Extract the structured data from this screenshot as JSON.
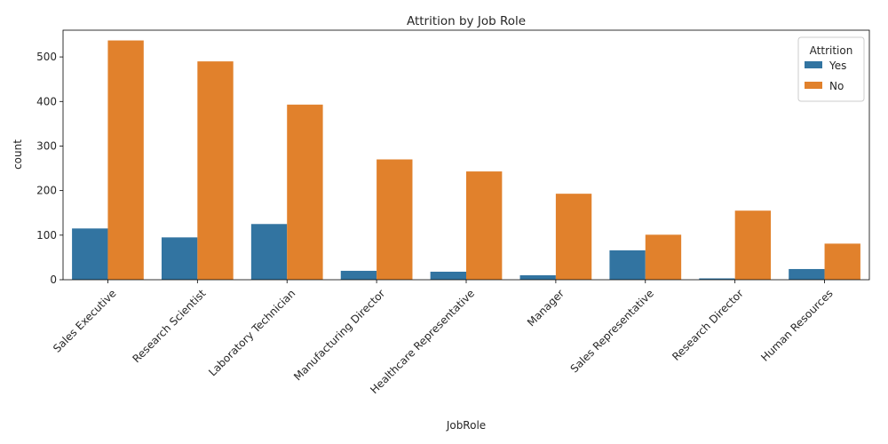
{
  "chart_data": {
    "type": "bar",
    "title": "Attrition by Job Role",
    "xlabel": "JobRole",
    "ylabel": "count",
    "ylim": [
      0,
      560
    ],
    "yticks": [
      0,
      100,
      200,
      300,
      400,
      500
    ],
    "categories": [
      "Sales Executive",
      "Research Scientist",
      "Laboratory Technician",
      "Manufacturing Director",
      "Healthcare Representative",
      "Manager",
      "Sales Representative",
      "Research Director",
      "Human Resources"
    ],
    "series": [
      {
        "name": "Yes",
        "color": "#3274a1",
        "values": [
          115,
          95,
          125,
          20,
          18,
          10,
          66,
          3,
          24
        ]
      },
      {
        "name": "No",
        "color": "#e1812c",
        "values": [
          537,
          490,
          393,
          270,
          243,
          193,
          101,
          155,
          81
        ]
      }
    ],
    "legend": {
      "title": "Attrition",
      "placement": "top-right"
    },
    "grid": false
  }
}
